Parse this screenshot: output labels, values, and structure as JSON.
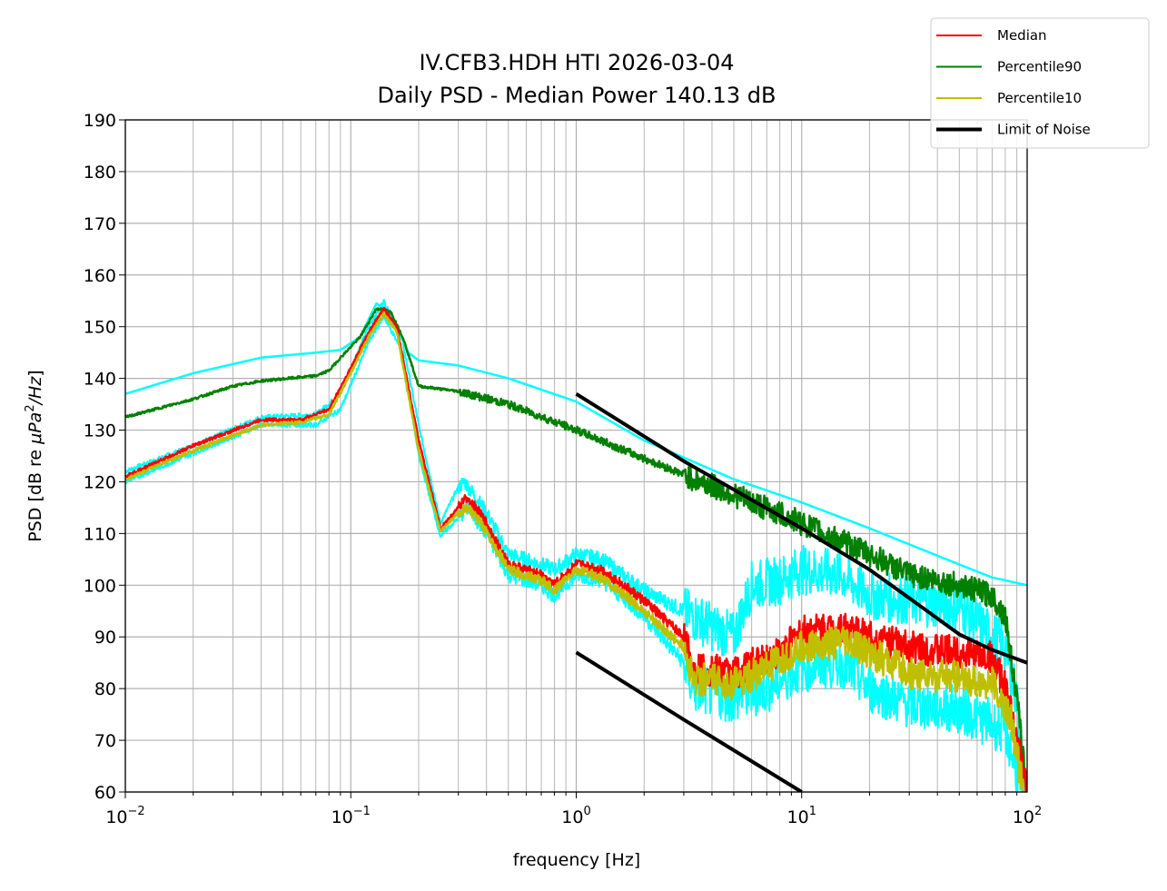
{
  "chart_data": {
    "type": "line",
    "title": [
      "IV.CFB3.HDH HTI 2026-03-04",
      "Daily PSD - Median Power 140.13 dB"
    ],
    "xlabel": "frequency [Hz]",
    "ylabel_prefix": "PSD [dB re ",
    "ylabel_math": "μPa",
    "ylabel_sup": "2",
    "ylabel_suffix_math": "/Hz",
    "ylabel_close": "]",
    "xscale": "log",
    "xlim": [
      0.01,
      100
    ],
    "ylim": [
      60,
      190
    ],
    "grid": true,
    "xticks": [
      {
        "base": "10",
        "exp": "−2",
        "v": 0.01
      },
      {
        "base": "10",
        "exp": "−1",
        "v": 0.1
      },
      {
        "base": "10",
        "exp": "0",
        "v": 1
      },
      {
        "base": "10",
        "exp": "1",
        "v": 10
      },
      {
        "base": "10",
        "exp": "2",
        "v": 100
      }
    ],
    "yticks": [
      "60",
      "70",
      "80",
      "90",
      "100",
      "110",
      "120",
      "130",
      "140",
      "150",
      "160",
      "170",
      "180",
      "190"
    ],
    "legend_position": "top-right (outside)",
    "legend": [
      {
        "label": "Median",
        "color": "#ff0000",
        "width": 2
      },
      {
        "label": "Percentile90",
        "color": "#008000",
        "width": 2
      },
      {
        "label": "Percentile10",
        "color": "#bfbf00",
        "width": 2
      },
      {
        "label": "Limit of Noise",
        "color": "#000000",
        "width": 4
      }
    ],
    "series": [
      {
        "id": "envelope-max",
        "color": "#00ffff",
        "width": 2.5,
        "noise": 0,
        "points": [
          [
            0.01,
            137
          ],
          [
            0.02,
            141
          ],
          [
            0.04,
            144
          ],
          [
            0.07,
            145
          ],
          [
            0.09,
            145.5
          ],
          [
            0.11,
            148
          ],
          [
            0.13,
            154.5
          ],
          [
            0.15,
            153
          ],
          [
            0.18,
            145
          ],
          [
            0.2,
            143.5
          ],
          [
            0.3,
            142.5
          ],
          [
            0.5,
            140
          ],
          [
            1,
            135.5
          ],
          [
            2,
            128
          ],
          [
            5,
            120.5
          ],
          [
            10,
            116
          ],
          [
            20,
            111
          ],
          [
            50,
            104
          ],
          [
            70,
            101.5
          ],
          [
            100,
            100
          ]
        ]
      },
      {
        "id": "envelope-lower-max",
        "color": "#00ffff",
        "width": 2,
        "noise": 3,
        "points": [
          [
            0.01,
            122
          ],
          [
            0.02,
            127
          ],
          [
            0.04,
            132.5
          ],
          [
            0.07,
            133
          ],
          [
            0.09,
            137
          ],
          [
            0.12,
            150
          ],
          [
            0.14,
            155
          ],
          [
            0.17,
            147
          ],
          [
            0.2,
            131
          ],
          [
            0.25,
            112
          ],
          [
            0.3,
            119
          ],
          [
            0.32,
            120
          ],
          [
            0.4,
            114
          ],
          [
            0.5,
            106
          ],
          [
            0.7,
            104
          ],
          [
            0.8,
            103
          ],
          [
            1,
            106
          ],
          [
            1.3,
            105
          ],
          [
            2,
            99
          ],
          [
            3,
            95
          ],
          [
            4,
            92
          ],
          [
            5,
            90
          ],
          [
            6,
            100
          ],
          [
            8,
            101
          ],
          [
            10,
            103
          ],
          [
            15,
            102
          ],
          [
            20,
            98
          ],
          [
            30,
            97
          ],
          [
            50,
            96
          ],
          [
            80,
            88
          ],
          [
            90,
            78
          ],
          [
            97,
            62
          ]
        ]
      },
      {
        "id": "envelope-min",
        "color": "#00ffff",
        "width": 2,
        "noise": 3,
        "points": [
          [
            0.01,
            120
          ],
          [
            0.02,
            125.5
          ],
          [
            0.04,
            131
          ],
          [
            0.07,
            131
          ],
          [
            0.09,
            134
          ],
          [
            0.12,
            147
          ],
          [
            0.14,
            152
          ],
          [
            0.17,
            145
          ],
          [
            0.2,
            125
          ],
          [
            0.25,
            109.5
          ],
          [
            0.3,
            113
          ],
          [
            0.33,
            115
          ],
          [
            0.4,
            110
          ],
          [
            0.5,
            102
          ],
          [
            0.7,
            100
          ],
          [
            0.8,
            98
          ],
          [
            1,
            102
          ],
          [
            1.3,
            101
          ],
          [
            2,
            94
          ],
          [
            3,
            85
          ],
          [
            3.3,
            80
          ],
          [
            5,
            78
          ],
          [
            7,
            80
          ],
          [
            10,
            84
          ],
          [
            15,
            85
          ],
          [
            20,
            80
          ],
          [
            30,
            77
          ],
          [
            50,
            76
          ],
          [
            80,
            72
          ],
          [
            90,
            64
          ],
          [
            95,
            60
          ]
        ]
      },
      {
        "id": "p90",
        "label": "Percentile90",
        "color": "#008000",
        "width": 2.5,
        "noise": 1.5,
        "points": [
          [
            0.01,
            132.5
          ],
          [
            0.02,
            136
          ],
          [
            0.03,
            138.5
          ],
          [
            0.04,
            139.5
          ],
          [
            0.07,
            140.5
          ],
          [
            0.08,
            141.5
          ],
          [
            0.09,
            144
          ],
          [
            0.11,
            148
          ],
          [
            0.13,
            153.5
          ],
          [
            0.15,
            153
          ],
          [
            0.17,
            148
          ],
          [
            0.2,
            138.5
          ],
          [
            0.3,
            137.5
          ],
          [
            0.5,
            135
          ],
          [
            1,
            130
          ],
          [
            2,
            124.5
          ],
          [
            5,
            117.5
          ],
          [
            10,
            112
          ],
          [
            20,
            106
          ],
          [
            30,
            102
          ],
          [
            50,
            100
          ],
          [
            70,
            98
          ],
          [
            80,
            94
          ],
          [
            90,
            78
          ],
          [
            100,
            60
          ]
        ]
      },
      {
        "id": "median",
        "label": "Median",
        "color": "#ff0000",
        "width": 2.5,
        "noise": 2,
        "points": [
          [
            0.01,
            121
          ],
          [
            0.02,
            127
          ],
          [
            0.04,
            132
          ],
          [
            0.06,
            132
          ],
          [
            0.08,
            134
          ],
          [
            0.1,
            142
          ],
          [
            0.12,
            149
          ],
          [
            0.14,
            153.5
          ],
          [
            0.16,
            150
          ],
          [
            0.2,
            128
          ],
          [
            0.25,
            111
          ],
          [
            0.3,
            115
          ],
          [
            0.33,
            117
          ],
          [
            0.4,
            112
          ],
          [
            0.5,
            104
          ],
          [
            0.7,
            102
          ],
          [
            0.8,
            100
          ],
          [
            1,
            104
          ],
          [
            1.3,
            103
          ],
          [
            2,
            97
          ],
          [
            3,
            90
          ],
          [
            3.3,
            84
          ],
          [
            5,
            83
          ],
          [
            7,
            86
          ],
          [
            8,
            87
          ],
          [
            10,
            91
          ],
          [
            15,
            92
          ],
          [
            20,
            90
          ],
          [
            30,
            88
          ],
          [
            50,
            87
          ],
          [
            70,
            86
          ],
          [
            80,
            80
          ],
          [
            90,
            70
          ],
          [
            100,
            60
          ]
        ]
      },
      {
        "id": "p10",
        "label": "Percentile10",
        "color": "#bfbf00",
        "width": 2.5,
        "noise": 2,
        "points": [
          [
            0.01,
            120.5
          ],
          [
            0.02,
            126
          ],
          [
            0.04,
            131
          ],
          [
            0.06,
            131.5
          ],
          [
            0.08,
            133
          ],
          [
            0.1,
            141
          ],
          [
            0.12,
            148
          ],
          [
            0.14,
            152.5
          ],
          [
            0.16,
            149
          ],
          [
            0.2,
            126
          ],
          [
            0.25,
            110.5
          ],
          [
            0.3,
            114
          ],
          [
            0.33,
            115
          ],
          [
            0.4,
            110.5
          ],
          [
            0.5,
            103
          ],
          [
            0.7,
            101
          ],
          [
            0.8,
            99
          ],
          [
            1,
            103
          ],
          [
            1.3,
            101.5
          ],
          [
            2,
            95
          ],
          [
            3,
            88
          ],
          [
            3.3,
            82
          ],
          [
            5,
            81
          ],
          [
            7,
            84
          ],
          [
            8,
            85
          ],
          [
            10,
            88
          ],
          [
            15,
            89
          ],
          [
            20,
            87
          ],
          [
            30,
            83
          ],
          [
            50,
            82
          ],
          [
            70,
            81
          ],
          [
            85,
            74
          ],
          [
            92,
            65
          ],
          [
            97,
            60
          ]
        ]
      },
      {
        "id": "noise-limit-upper",
        "label": "Limit of Noise",
        "color": "#000000",
        "width": 4,
        "noise": 0,
        "points": [
          [
            1,
            137
          ],
          [
            3,
            124
          ],
          [
            10,
            111
          ],
          [
            20,
            103
          ],
          [
            30,
            97.5
          ],
          [
            50,
            90.5
          ],
          [
            70,
            87.5
          ],
          [
            100,
            85
          ]
        ]
      },
      {
        "id": "noise-limit-lower",
        "color": "#000000",
        "width": 4,
        "noise": 0,
        "points": [
          [
            1,
            87
          ],
          [
            3,
            74
          ],
          [
            10,
            60
          ]
        ]
      }
    ]
  }
}
